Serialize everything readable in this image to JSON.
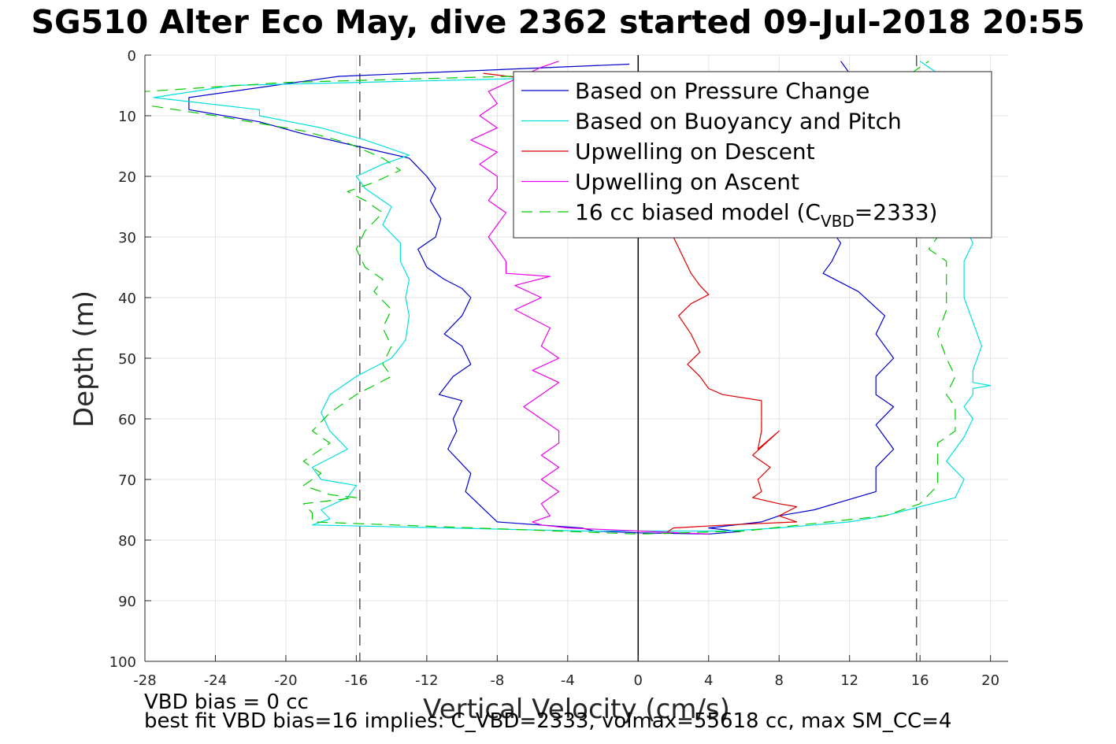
{
  "chart_data": {
    "type": "line",
    "title": "SG510 Alter Eco May, dive 2362 started 09-Jul-2018 20:55",
    "xlabel": "Vertical Velocity (cm/s)",
    "ylabel": "Depth (m)",
    "xlim": [
      -28,
      21
    ],
    "ylim": [
      0,
      100
    ],
    "y_reversed": true,
    "grid": true,
    "xticks": [
      -28,
      -24,
      -20,
      -16,
      -12,
      -8,
      -4,
      0,
      4,
      8,
      12,
      16,
      20
    ],
    "yticks": [
      0,
      10,
      20,
      30,
      40,
      50,
      60,
      70,
      80,
      90,
      100
    ],
    "legend_position": "top-right",
    "vertical_reference_lines": [
      {
        "x": 0,
        "style": "solid",
        "color": "#000000"
      },
      {
        "x": -15.8,
        "style": "dash",
        "color": "#555555"
      },
      {
        "x": 15.8,
        "style": "dash",
        "color": "#555555"
      }
    ],
    "series": [
      {
        "name": "Based on Pressure Change",
        "color": "#0000cc",
        "dash": "solid",
        "x": [
          -0.5,
          -17,
          -25.5,
          -25.5,
          -21.5,
          -19,
          -16,
          -13,
          -12.5,
          -12,
          -11.5,
          -11.8,
          -11.2,
          -11.5,
          -12.5,
          -12,
          -11,
          -10,
          -9.5,
          -10,
          -11,
          -10,
          -9.5,
          -10.5,
          -11.3,
          -10,
          -10.5,
          -10.3,
          -10.8,
          -9.5,
          -9.8,
          -8,
          -3.2,
          -2.5,
          0,
          4,
          5.8,
          4,
          7,
          8,
          10,
          13.5,
          13.5,
          13.5,
          14.5,
          14,
          13.5,
          14.5,
          13.5,
          13.5,
          14.5,
          13.5,
          14,
          12.5,
          10.5,
          11,
          11.5,
          11,
          10.5,
          12,
          11.5
        ],
        "y": [
          1.5,
          3.5,
          7,
          9,
          11,
          13,
          15,
          17,
          18.5,
          20,
          22,
          24,
          27,
          30,
          32,
          35,
          37,
          38.5,
          40,
          43,
          46,
          48,
          51,
          53,
          56,
          57,
          60,
          62,
          65,
          69,
          72,
          77,
          78,
          78.5,
          78.8,
          79,
          78.6,
          78,
          77,
          76,
          75,
          72,
          70,
          68,
          65,
          63,
          61,
          58,
          56,
          53,
          50,
          46,
          43,
          39,
          36,
          34,
          31,
          29,
          22,
          3,
          1
        ],
        "dash_px": ""
      },
      {
        "name": "Based on Buoyancy and Pitch",
        "color": "#00e0e0",
        "dash": "solid",
        "x": [
          -1.5,
          -23,
          -27.5,
          -21.5,
          -21.5,
          -18,
          -15.5,
          -13,
          -14.5,
          -16,
          -15.5,
          -14,
          -14.5,
          -13.5,
          -13.5,
          -13,
          -13.2,
          -13,
          -13.2,
          -14,
          -16,
          -17.5,
          -18,
          -17.5,
          -16.5,
          -18.5,
          -18,
          -16,
          -16.5,
          -18,
          -17.5,
          -18.5,
          -3,
          5,
          8,
          12,
          14,
          18,
          18.5,
          17.5,
          18.5,
          19,
          18.5,
          19,
          19,
          20,
          19,
          19,
          19.5,
          19,
          18.5,
          18.5,
          18.5,
          19,
          18.5,
          18,
          17.5,
          18,
          17.5,
          18.5,
          17.5,
          16
        ],
        "y": [
          3.5,
          5,
          7,
          9,
          10,
          12,
          14,
          16.5,
          18,
          20,
          22,
          25,
          28,
          31,
          34,
          37,
          40,
          43,
          47,
          50,
          53,
          56,
          59,
          62,
          65,
          68,
          70,
          71,
          73,
          75,
          76.5,
          77.5,
          78.5,
          78.5,
          78,
          77,
          76,
          73,
          70,
          67,
          63,
          60,
          58,
          56,
          55,
          54.5,
          54,
          52,
          48,
          44,
          40,
          37,
          34,
          31,
          28,
          25,
          22,
          18,
          12,
          8,
          4,
          1
        ],
        "dash_px": ""
      },
      {
        "name": "Upwelling on Descent",
        "color": "#dd0000",
        "dash": "solid",
        "x": [
          -8.8,
          -6,
          -4,
          -2.5,
          -1,
          0.5,
          1,
          1.5,
          1.8,
          2,
          2.5,
          3,
          3.5,
          4,
          3,
          2.3,
          3,
          3.5,
          2.8,
          3.5,
          4,
          4.8,
          7,
          7,
          6.8,
          8,
          6.5,
          7.5,
          6.8,
          7,
          6.5,
          8,
          9,
          8,
          9,
          5,
          2,
          1.5
        ],
        "y": [
          3,
          4,
          6,
          8,
          10,
          14,
          18,
          22,
          26,
          30,
          33,
          36,
          38,
          39.5,
          41,
          43,
          46,
          49,
          51,
          53,
          55,
          56,
          57,
          62,
          65,
          62,
          66,
          68,
          70,
          72,
          73,
          74,
          74.5,
          76,
          77,
          77.5,
          78,
          79
        ],
        "dash_px": ""
      },
      {
        "name": "Upwelling on Ascent",
        "color": "#ee00ee",
        "dash": "solid",
        "x": [
          -4.5,
          -5.5,
          -7,
          -8.5,
          -8,
          -9,
          -8,
          -9.5,
          -8,
          -9,
          -8,
          -8,
          -8.5,
          -7.5,
          -8,
          -8.5,
          -8,
          -7.5,
          -7.5,
          -5,
          -7,
          -5.5,
          -7,
          -5,
          -5.5,
          -4.5,
          -6,
          -4.5,
          -5.5,
          -6.5,
          -5.5,
          -4.5,
          -4.5,
          -5.5,
          -4.5,
          -5.5,
          -4.5,
          -5.5,
          -5,
          -6,
          -5.5,
          -4,
          0,
          4
        ],
        "y": [
          1,
          2,
          4,
          6,
          8,
          10,
          12,
          14,
          16,
          18,
          20,
          22,
          24,
          26,
          28,
          30,
          32,
          34,
          36,
          36.5,
          38,
          40,
          42,
          45,
          48,
          50,
          52,
          54,
          56,
          58,
          60,
          62,
          64,
          66,
          68,
          70,
          72,
          74,
          76,
          77,
          77.5,
          78,
          78.5,
          79
        ],
        "dash_px": ""
      },
      {
        "name": "16 cc biased model (C_VBD=2333)",
        "legend_main": "16 cc biased model (C",
        "legend_sub": "VBD",
        "legend_tail": "=2333)",
        "color": "#00cc00",
        "dash": "dash",
        "x": [
          -1,
          -20,
          -28,
          -28.5,
          -24,
          -19,
          -16.5,
          -14.5,
          -13.5,
          -15,
          -16.5,
          -15.5,
          -14.5,
          -15.5,
          -16,
          -15.5,
          -14.5,
          -15,
          -14,
          -14.5,
          -14,
          -14.5,
          -14,
          -16,
          -17.5,
          -18.5,
          -17.5,
          -19,
          -18,
          -19,
          -17.5,
          -16,
          -19,
          -18.5,
          -18.5,
          0,
          6,
          14,
          16,
          17,
          17,
          17,
          18,
          18,
          17.5,
          18,
          17.5,
          17,
          17.5,
          17.5,
          17.5,
          17.5,
          16.5,
          17,
          16,
          16,
          16.5,
          16,
          16,
          15.5,
          16.5
        ],
        "y": [
          3,
          4.5,
          6,
          8,
          10,
          12.5,
          14.5,
          17,
          19,
          21,
          22.5,
          24,
          26,
          29,
          32,
          35,
          37,
          39,
          42,
          45,
          48,
          51,
          53,
          56,
          59,
          62,
          64,
          67,
          69,
          71,
          72.5,
          73,
          74,
          75.5,
          77,
          79,
          78.5,
          76,
          74,
          71,
          67,
          64,
          62,
          58,
          56,
          53,
          50,
          46,
          42,
          39,
          36,
          34,
          32,
          30,
          27,
          22,
          18,
          12,
          6,
          3,
          1
        ],
        "dash_px": "14,9"
      }
    ],
    "annotations": [
      "VBD bias = 0 cc",
      "best fit VBD bias=16 implies: C_VBD=2333, volmax=55618 cc, max SM_CC=4"
    ]
  }
}
